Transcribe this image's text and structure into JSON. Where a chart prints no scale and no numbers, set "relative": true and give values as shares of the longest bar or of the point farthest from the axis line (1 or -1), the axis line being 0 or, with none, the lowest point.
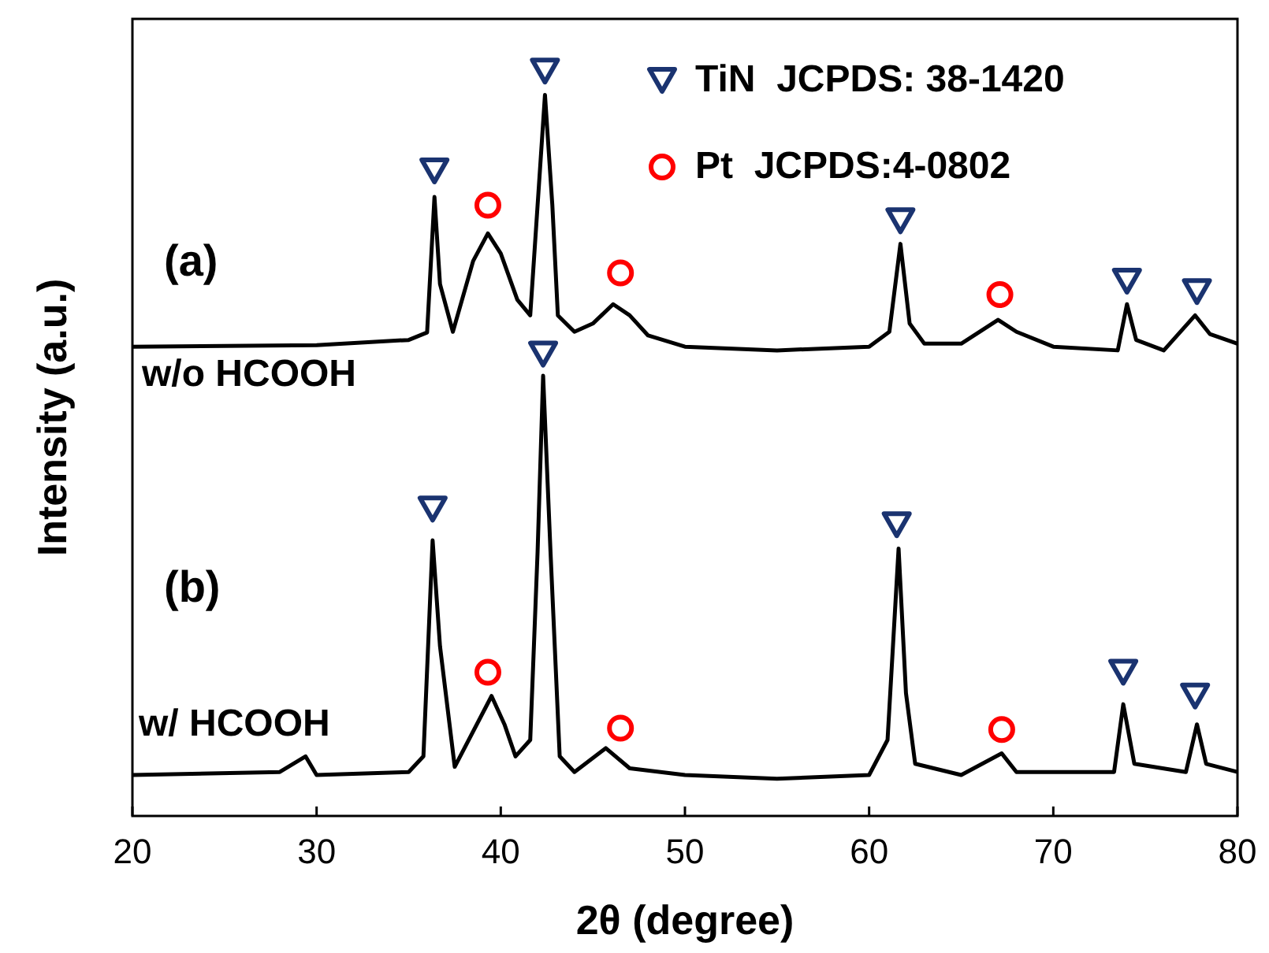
{
  "chart_data": {
    "type": "line",
    "relative": true,
    "xlabel": "2θ (degree)",
    "ylabel": "Intensity (a.u.)",
    "xlim": [
      20,
      80
    ],
    "xticks": [
      20,
      30,
      40,
      50,
      60,
      70,
      80
    ],
    "grid": false,
    "legend": "top right",
    "annotations": [
      "(a)",
      "w/o HCOOH",
      "(b)",
      "w/ HCOOH"
    ],
    "series": [
      {
        "color": "#000000",
        "marker": "none",
        "x": [
          20,
          30,
          35,
          36.0,
          36.4,
          36.7,
          37.4,
          38.5,
          39.3,
          40.0,
          40.9,
          41.6,
          42.0,
          42.4,
          42.8,
          43.1,
          44,
          45,
          46.1,
          47,
          48,
          50,
          55,
          60,
          61.1,
          61.7,
          62.2,
          63,
          65,
          67.0,
          68,
          70,
          73.5,
          74.0,
          74.5,
          76,
          77.7,
          78.5,
          80
        ],
        "values": [
          0.63,
          0.632,
          0.639,
          0.649,
          0.831,
          0.714,
          0.65,
          0.745,
          0.782,
          0.755,
          0.693,
          0.672,
          0.82,
          0.968,
          0.82,
          0.672,
          0.65,
          0.661,
          0.687,
          0.672,
          0.645,
          0.63,
          0.625,
          0.63,
          0.65,
          0.768,
          0.661,
          0.634,
          0.634,
          0.666,
          0.65,
          0.63,
          0.625,
          0.687,
          0.639,
          0.625,
          0.672,
          0.647,
          0.634
        ]
      },
      {
        "color": "#000000",
        "marker": "none",
        "x": [
          20,
          28,
          29.4,
          30,
          35,
          35.8,
          36.3,
          36.7,
          37.5,
          39.5,
          40.2,
          40.8,
          41.6,
          42.0,
          42.3,
          42.7,
          43.2,
          44,
          45.7,
          47,
          50,
          55,
          60,
          61.0,
          61.6,
          62.0,
          62.5,
          65,
          67.2,
          68,
          73.3,
          73.8,
          74.4,
          77.2,
          77.8,
          78.3,
          80
        ],
        "values": [
          0.055,
          0.059,
          0.08,
          0.055,
          0.059,
          0.08,
          0.37,
          0.228,
          0.066,
          0.161,
          0.123,
          0.08,
          0.102,
          0.355,
          0.591,
          0.355,
          0.08,
          0.059,
          0.091,
          0.064,
          0.055,
          0.05,
          0.055,
          0.102,
          0.359,
          0.165,
          0.07,
          0.055,
          0.084,
          0.059,
          0.059,
          0.15,
          0.07,
          0.059,
          0.123,
          0.07,
          0.059
        ]
      },
      {
        "type": "scatter",
        "name": "TiN  JCPDS: 38-1420",
        "color": "#1a3370",
        "marker": "triangle",
        "x": [
          36.4,
          42.4,
          61.7,
          74.0,
          77.8,
          36.3,
          42.3,
          61.5,
          73.8,
          77.7
        ],
        "values": [
          0.866,
          1.0,
          0.799,
          0.718,
          0.704,
          0.412,
          0.62,
          0.391,
          0.193,
          0.161
        ]
      },
      {
        "type": "scatter",
        "name": "Pt  JCPDS:4-0802",
        "color": "#ff0000",
        "marker": "circle",
        "x": [
          39.3,
          46.5,
          67.1,
          39.3,
          46.5,
          67.2
        ],
        "values": [
          0.82,
          0.729,
          0.7,
          0.193,
          0.118,
          0.116
        ]
      }
    ]
  }
}
